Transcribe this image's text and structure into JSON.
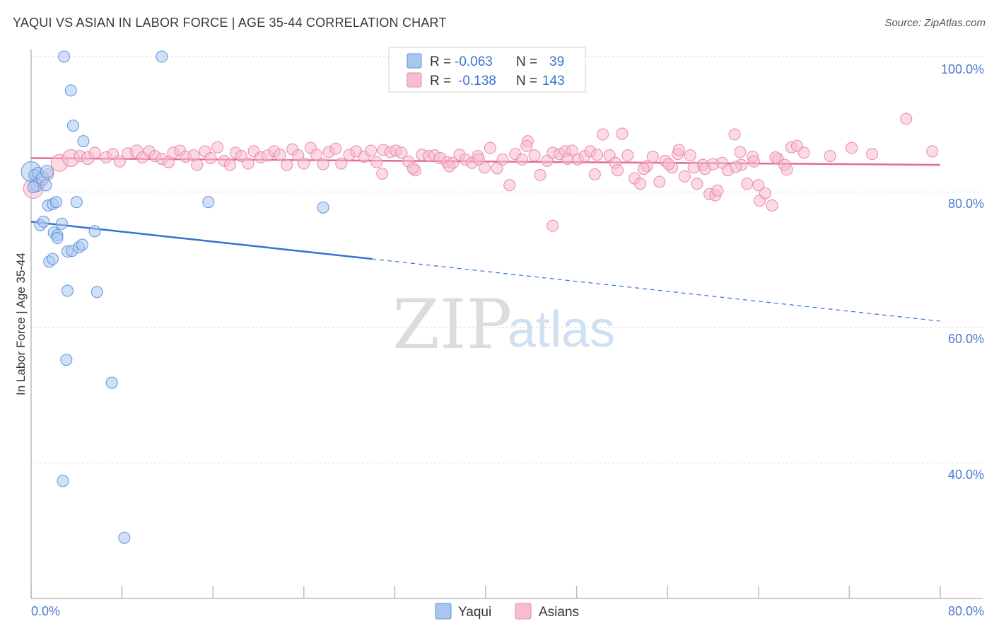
{
  "header": {
    "title": "YAQUI VS ASIAN IN LABOR FORCE | AGE 35-44 CORRELATION CHART",
    "source": "Source: ZipAtlas.com"
  },
  "legend": {
    "rows": [
      {
        "r_label": "R =",
        "r_value": "-0.063",
        "n_label": "N =",
        "n_value": "39"
      },
      {
        "r_label": "R =",
        "r_value": "-0.138",
        "n_label": "N =",
        "n_value": "143"
      }
    ]
  },
  "bottom_legend": {
    "series1": "Yaqui",
    "series2": "Asians"
  },
  "watermark": {
    "zip": "ZIP",
    "atlas": "atlas"
  },
  "colors": {
    "yaqui_fill": "#a9c6f0",
    "yaqui_stroke": "#5e94dc",
    "yaqui_line": "#2f74d0",
    "asian_fill": "#f7bccd",
    "asian_stroke": "#e98aa8",
    "asian_line": "#e46a93",
    "grid": "#d9d9d9",
    "axis_label": "#4a7bd0"
  },
  "chart_data": {
    "type": "scatter",
    "title": "YAQUI VS ASIAN IN LABOR FORCE | AGE 35-44 CORRELATION CHART",
    "xlabel": "",
    "ylabel": "In Labor Force | Age 35-44",
    "xlim": [
      0,
      80
    ],
    "ylim": [
      21,
      102
    ],
    "x_tick_labels": [
      "0.0%",
      "80.0%"
    ],
    "y_ticks": [
      40,
      60,
      80,
      100
    ],
    "y_tick_labels": [
      "40.0%",
      "60.0%",
      "80.0%",
      "100.0%"
    ],
    "series": [
      {
        "name": "Yaqui",
        "r": -0.063,
        "n": 39,
        "trend": {
          "x0": 0,
          "y0": 75.6,
          "x1": 30,
          "y1": 70.1,
          "x_dash_end": 80,
          "y_dash_end": 60.9
        },
        "points": [
          [
            0.0,
            83.0,
            14
          ],
          [
            0.3,
            82.5,
            8
          ],
          [
            0.5,
            81.0,
            9
          ],
          [
            0.6,
            82.8,
            8
          ],
          [
            1.0,
            82.0,
            9
          ],
          [
            1.3,
            81.0,
            8
          ],
          [
            1.4,
            83.0,
            9
          ],
          [
            1.5,
            78.0,
            8
          ],
          [
            1.9,
            78.2,
            8
          ],
          [
            2.2,
            78.5,
            8
          ],
          [
            2.9,
            100.0,
            8
          ],
          [
            11.5,
            100.0,
            8
          ],
          [
            3.5,
            95.0,
            8
          ],
          [
            3.7,
            89.8,
            8
          ],
          [
            4.6,
            87.5,
            8
          ],
          [
            4.0,
            78.5,
            8
          ],
          [
            15.6,
            78.5,
            8
          ],
          [
            25.7,
            77.7,
            8
          ],
          [
            0.8,
            75.1,
            8
          ],
          [
            1.1,
            75.6,
            8
          ],
          [
            2.7,
            75.3,
            8
          ],
          [
            2.0,
            74.0,
            8
          ],
          [
            2.3,
            73.6,
            8
          ],
          [
            2.3,
            73.2,
            8
          ],
          [
            5.6,
            74.2,
            8
          ],
          [
            3.2,
            71.2,
            8
          ],
          [
            3.6,
            71.3,
            8
          ],
          [
            4.2,
            71.8,
            8
          ],
          [
            4.5,
            72.2,
            8
          ],
          [
            1.6,
            69.7,
            8
          ],
          [
            1.9,
            70.1,
            8
          ],
          [
            3.2,
            65.4,
            8
          ],
          [
            5.8,
            65.2,
            8
          ],
          [
            3.1,
            55.2,
            8
          ],
          [
            7.1,
            51.8,
            8
          ],
          [
            2.8,
            37.3,
            8
          ],
          [
            8.2,
            28.9,
            8
          ],
          [
            0.2,
            80.7,
            8
          ],
          [
            0.8,
            79.2,
            0
          ]
        ]
      },
      {
        "name": "Asians",
        "r": -0.138,
        "n": 143,
        "trend": {
          "x0": 0,
          "y0": 85.0,
          "x1": 80,
          "y1": 84.0
        },
        "points": [
          [
            0.2,
            80.5,
            14
          ],
          [
            0.8,
            81.7,
            10
          ],
          [
            1.5,
            82.6,
            8
          ],
          [
            2.5,
            84.3,
            12
          ],
          [
            3.5,
            85.0,
            12
          ],
          [
            4.3,
            85.3,
            8
          ],
          [
            5.0,
            85.0,
            9
          ],
          [
            5.6,
            85.8,
            8
          ],
          [
            6.6,
            85.1,
            8
          ],
          [
            7.2,
            85.6,
            8
          ],
          [
            7.8,
            84.5,
            8
          ],
          [
            8.5,
            85.7,
            8
          ],
          [
            9.3,
            86.0,
            9
          ],
          [
            9.8,
            85.1,
            8
          ],
          [
            10.4,
            86.0,
            8
          ],
          [
            10.9,
            85.3,
            8
          ],
          [
            11.5,
            84.9,
            8
          ],
          [
            12.1,
            84.4,
            8
          ],
          [
            12.5,
            85.8,
            8
          ],
          [
            13.1,
            86.1,
            8
          ],
          [
            13.6,
            85.2,
            8
          ],
          [
            14.3,
            85.4,
            8
          ],
          [
            14.6,
            84.0,
            8
          ],
          [
            15.3,
            86.0,
            8
          ],
          [
            15.8,
            85.0,
            8
          ],
          [
            16.4,
            86.6,
            8
          ],
          [
            17.0,
            84.6,
            8
          ],
          [
            17.5,
            84.0,
            8
          ],
          [
            18.0,
            85.8,
            8
          ],
          [
            18.5,
            85.3,
            8
          ],
          [
            19.1,
            84.2,
            8
          ],
          [
            19.6,
            86.0,
            8
          ],
          [
            20.2,
            85.1,
            8
          ],
          [
            20.8,
            85.4,
            8
          ],
          [
            21.4,
            86.0,
            8
          ],
          [
            21.9,
            85.5,
            8
          ],
          [
            22.5,
            84.0,
            8
          ],
          [
            23.0,
            86.3,
            8
          ],
          [
            23.5,
            85.4,
            8
          ],
          [
            24.0,
            84.2,
            8
          ],
          [
            24.6,
            86.5,
            8
          ],
          [
            25.1,
            85.5,
            8
          ],
          [
            25.7,
            84.1,
            8
          ],
          [
            26.2,
            85.9,
            8
          ],
          [
            26.8,
            86.4,
            8
          ],
          [
            27.3,
            84.2,
            8
          ],
          [
            28.0,
            85.5,
            8
          ],
          [
            28.6,
            86.0,
            8
          ],
          [
            29.3,
            85.2,
            8
          ],
          [
            29.9,
            86.1,
            8
          ],
          [
            30.4,
            84.4,
            8
          ],
          [
            31.0,
            86.2,
            8
          ],
          [
            31.6,
            85.9,
            8
          ],
          [
            32.1,
            86.1,
            8
          ],
          [
            32.6,
            85.8,
            8
          ],
          [
            33.2,
            84.5,
            8
          ],
          [
            33.8,
            83.2,
            8
          ],
          [
            34.4,
            85.5,
            8
          ],
          [
            35.0,
            85.3,
            8
          ],
          [
            35.5,
            85.4,
            8
          ],
          [
            36.0,
            85.0,
            8
          ],
          [
            36.6,
            84.4,
            8
          ],
          [
            37.1,
            84.3,
            8
          ],
          [
            37.7,
            85.5,
            8
          ],
          [
            38.2,
            84.8,
            8
          ],
          [
            38.8,
            84.3,
            8
          ],
          [
            39.3,
            85.3,
            8
          ],
          [
            39.9,
            83.6,
            8
          ],
          [
            40.4,
            86.5,
            8
          ],
          [
            41.0,
            83.5,
            8
          ],
          [
            41.5,
            84.8,
            8
          ],
          [
            42.1,
            81.0,
            8
          ],
          [
            42.6,
            85.6,
            8
          ],
          [
            43.2,
            84.8,
            8
          ],
          [
            43.7,
            87.5,
            8
          ],
          [
            44.3,
            85.4,
            8
          ],
          [
            44.8,
            82.5,
            8
          ],
          [
            45.4,
            84.6,
            8
          ],
          [
            45.9,
            85.8,
            8
          ],
          [
            46.5,
            85.6,
            8
          ],
          [
            47.0,
            86.0,
            8
          ],
          [
            47.6,
            86.1,
            8
          ],
          [
            48.1,
            84.8,
            8
          ],
          [
            48.7,
            85.3,
            8
          ],
          [
            49.2,
            86.0,
            8
          ],
          [
            49.8,
            85.5,
            8
          ],
          [
            50.3,
            88.5,
            8
          ],
          [
            50.9,
            85.4,
            8
          ],
          [
            51.4,
            84.3,
            8
          ],
          [
            52.0,
            88.6,
            8
          ],
          [
            52.5,
            85.4,
            8
          ],
          [
            53.1,
            82.0,
            8
          ],
          [
            53.6,
            81.2,
            8
          ],
          [
            54.2,
            83.8,
            8
          ],
          [
            54.7,
            85.2,
            8
          ],
          [
            55.3,
            81.5,
            8
          ],
          [
            55.8,
            84.6,
            8
          ],
          [
            56.4,
            83.6,
            8
          ],
          [
            56.9,
            85.6,
            8
          ],
          [
            57.5,
            82.3,
            8
          ],
          [
            58.0,
            85.4,
            8
          ],
          [
            58.6,
            81.2,
            8
          ],
          [
            59.1,
            84.0,
            8
          ],
          [
            59.7,
            79.7,
            8
          ],
          [
            60.2,
            79.5,
            8
          ],
          [
            60.8,
            84.3,
            8
          ],
          [
            61.3,
            83.2,
            8
          ],
          [
            61.9,
            88.5,
            8
          ],
          [
            62.4,
            85.9,
            8
          ],
          [
            63.0,
            81.2,
            8
          ],
          [
            63.5,
            85.2,
            8
          ],
          [
            64.1,
            78.7,
            8
          ],
          [
            64.6,
            79.8,
            8
          ],
          [
            65.2,
            78.0,
            8
          ],
          [
            65.7,
            84.9,
            8
          ],
          [
            66.3,
            84.0,
            8
          ],
          [
            66.9,
            86.6,
            8
          ],
          [
            67.4,
            86.8,
            8
          ],
          [
            68.0,
            85.8,
            8
          ],
          [
            70.3,
            85.3,
            8
          ],
          [
            72.2,
            86.5,
            8
          ],
          [
            74.0,
            85.6,
            8
          ],
          [
            77.0,
            90.8,
            8
          ],
          [
            79.3,
            86.0,
            8
          ],
          [
            45.9,
            75.0,
            8
          ],
          [
            43.6,
            86.8,
            8
          ],
          [
            62.5,
            84.0,
            8
          ],
          [
            66.5,
            83.3,
            8
          ],
          [
            60.0,
            84.1,
            8
          ],
          [
            64.0,
            81.0,
            8
          ],
          [
            30.9,
            82.7,
            8
          ],
          [
            33.6,
            83.5,
            8
          ],
          [
            36.8,
            83.8,
            8
          ],
          [
            39.4,
            84.8,
            8
          ],
          [
            47.2,
            84.9,
            8
          ],
          [
            49.6,
            82.6,
            8
          ],
          [
            51.6,
            83.2,
            8
          ],
          [
            53.9,
            83.4,
            8
          ],
          [
            57.0,
            86.2,
            8
          ],
          [
            58.3,
            83.6,
            8
          ],
          [
            60.4,
            80.2,
            8
          ],
          [
            62.0,
            83.7,
            8
          ],
          [
            63.6,
            84.5,
            8
          ],
          [
            65.5,
            85.1,
            8
          ],
          [
            56.1,
            84.1,
            8
          ],
          [
            59.3,
            83.4,
            8
          ]
        ]
      }
    ]
  }
}
